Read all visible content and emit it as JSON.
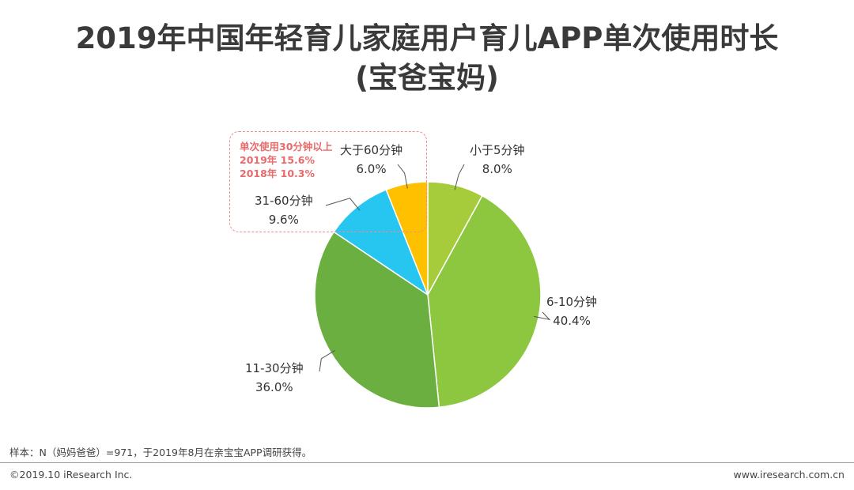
{
  "title": {
    "line1": "2019年中国年轻育儿家庭用户育儿APP单次使用时长",
    "line2": "(宝爸宝妈)"
  },
  "callout": {
    "heading": "单次使用30分钟以上",
    "line_2019": "2019年 15.6%",
    "line_2018": "2018年 10.3%"
  },
  "chart_data": {
    "type": "pie",
    "title": "2019年中国年轻育儿家庭用户育儿APP单次使用时长(宝爸宝妈)",
    "slices": [
      {
        "label": "小于5分钟",
        "value": 8.0,
        "display": "8.0%",
        "color": "#a6cc3c"
      },
      {
        "label": "6-10分钟",
        "value": 40.4,
        "display": "40.4%",
        "color": "#8dc63f"
      },
      {
        "label": "11-30分钟",
        "value": 36.0,
        "display": "36.0%",
        "color": "#6aaf3f"
      },
      {
        "label": "31-60分钟",
        "value": 9.6,
        "display": "9.6%",
        "color": "#26c6f0"
      },
      {
        "label": "大于60分钟",
        "value": 6.0,
        "display": "6.0%",
        "color": "#ffc000"
      }
    ]
  },
  "footer": {
    "note": "样本：N（妈妈爸爸）=971，于2019年8月在亲宝宝APP调研获得。",
    "copyright": "©2019.10 iResearch Inc.",
    "site": "www.iresearch.com.cn"
  }
}
